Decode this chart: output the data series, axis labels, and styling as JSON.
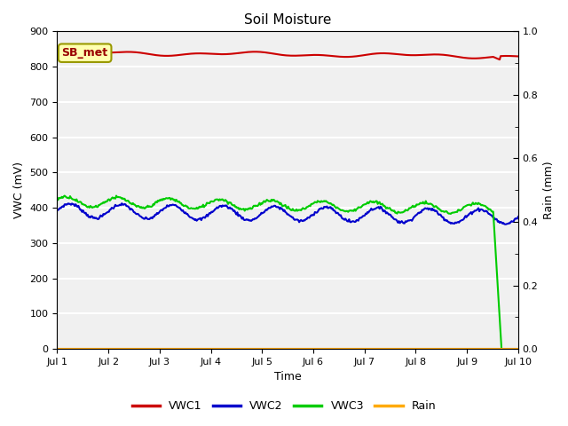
{
  "title": "Soil Moisture",
  "ylabel_left": "VWC (mV)",
  "ylabel_right": "Rain (mm)",
  "xlabel": "Time",
  "ylim_left": [
    0,
    900
  ],
  "ylim_right": [
    0.0,
    1.0
  ],
  "annotation_text": "SB_met",
  "annotation_bg": "#FFFFB0",
  "annotation_border": "#999900",
  "bg_color": "#F0F0F0",
  "vwc1_color": "#CC0000",
  "vwc2_color": "#0000CC",
  "vwc3_color": "#00CC00",
  "rain_color": "#FFAA00",
  "line_width": 1.5,
  "vwc1_base": 840,
  "vwc2_base": 392,
  "vwc2_amp": 20,
  "vwc3_base": 418,
  "vwc3_amp": 14,
  "legend_labels": [
    "VWC1",
    "VWC2",
    "VWC3",
    "Rain"
  ],
  "title_fontsize": 11,
  "axis_label_fontsize": 9,
  "tick_fontsize": 8,
  "legend_fontsize": 9
}
